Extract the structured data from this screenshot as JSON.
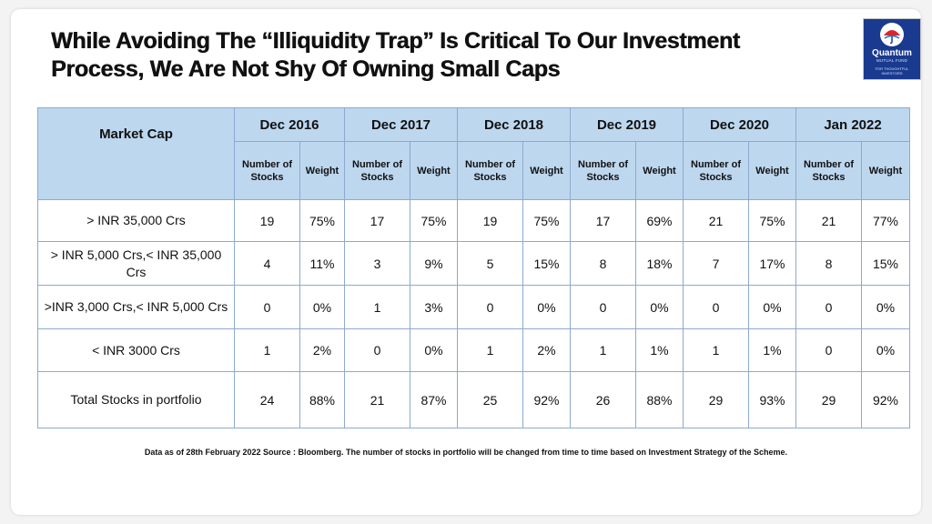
{
  "title_line1": "While Avoiding The “Illiquidity Trap” Is Critical To Our Investment",
  "title_line2": "Process, We Are Not Shy Of Owning Small Caps",
  "logo": {
    "brand": "Quantum",
    "sub": "MUTUAL FUND",
    "tag_line1": "FOR THOUGHTFUL",
    "tag_line2": "INVESTORS",
    "colors": {
      "background": "#1a3a8f",
      "accent": "#d9262c"
    }
  },
  "table": {
    "market_cap_header": "Market Cap",
    "years": [
      "Dec 2016",
      "Dec 2017",
      "Dec 2018",
      "Dec 2019",
      "Dec 2020",
      "Jan 2022"
    ],
    "sub_headers": {
      "stocks": "Number of Stocks",
      "weight": "Weight"
    },
    "rows": [
      {
        "label": "> INR 35,000 Crs",
        "values": [
          "19",
          "75%",
          "17",
          "75%",
          "19",
          "75%",
          "17",
          "69%",
          "21",
          "75%",
          "21",
          "77%"
        ]
      },
      {
        "label": "> INR 5,000 Crs,< INR 35,000 Crs",
        "values": [
          "4",
          "11%",
          "3",
          "9%",
          "5",
          "15%",
          "8",
          "18%",
          "7",
          "17%",
          "8",
          "15%"
        ]
      },
      {
        "label": ">INR 3,000 Crs,< INR 5,000 Crs",
        "values": [
          "0",
          "0%",
          "1",
          "3%",
          "0",
          "0%",
          "0",
          "0%",
          "0",
          "0%",
          "0",
          "0%"
        ]
      },
      {
        "label": "< INR 3000 Crs",
        "values": [
          "1",
          "2%",
          "0",
          "0%",
          "1",
          "2%",
          "1",
          "1%",
          "1",
          "1%",
          "0",
          "0%"
        ]
      },
      {
        "label": "Total Stocks in portfolio",
        "values": [
          "24",
          "88%",
          "21",
          "87%",
          "25",
          "92%",
          "26",
          "88%",
          "29",
          "93%",
          "29",
          "92%"
        ]
      }
    ],
    "colors": {
      "header_bg": "#bdd7ee",
      "border": "#8ea9cf"
    }
  },
  "footnote": "Data as of 28th February 2022 Source : Bloomberg. The number of stocks in portfolio will be changed from time to time based on Investment Strategy of the Scheme."
}
